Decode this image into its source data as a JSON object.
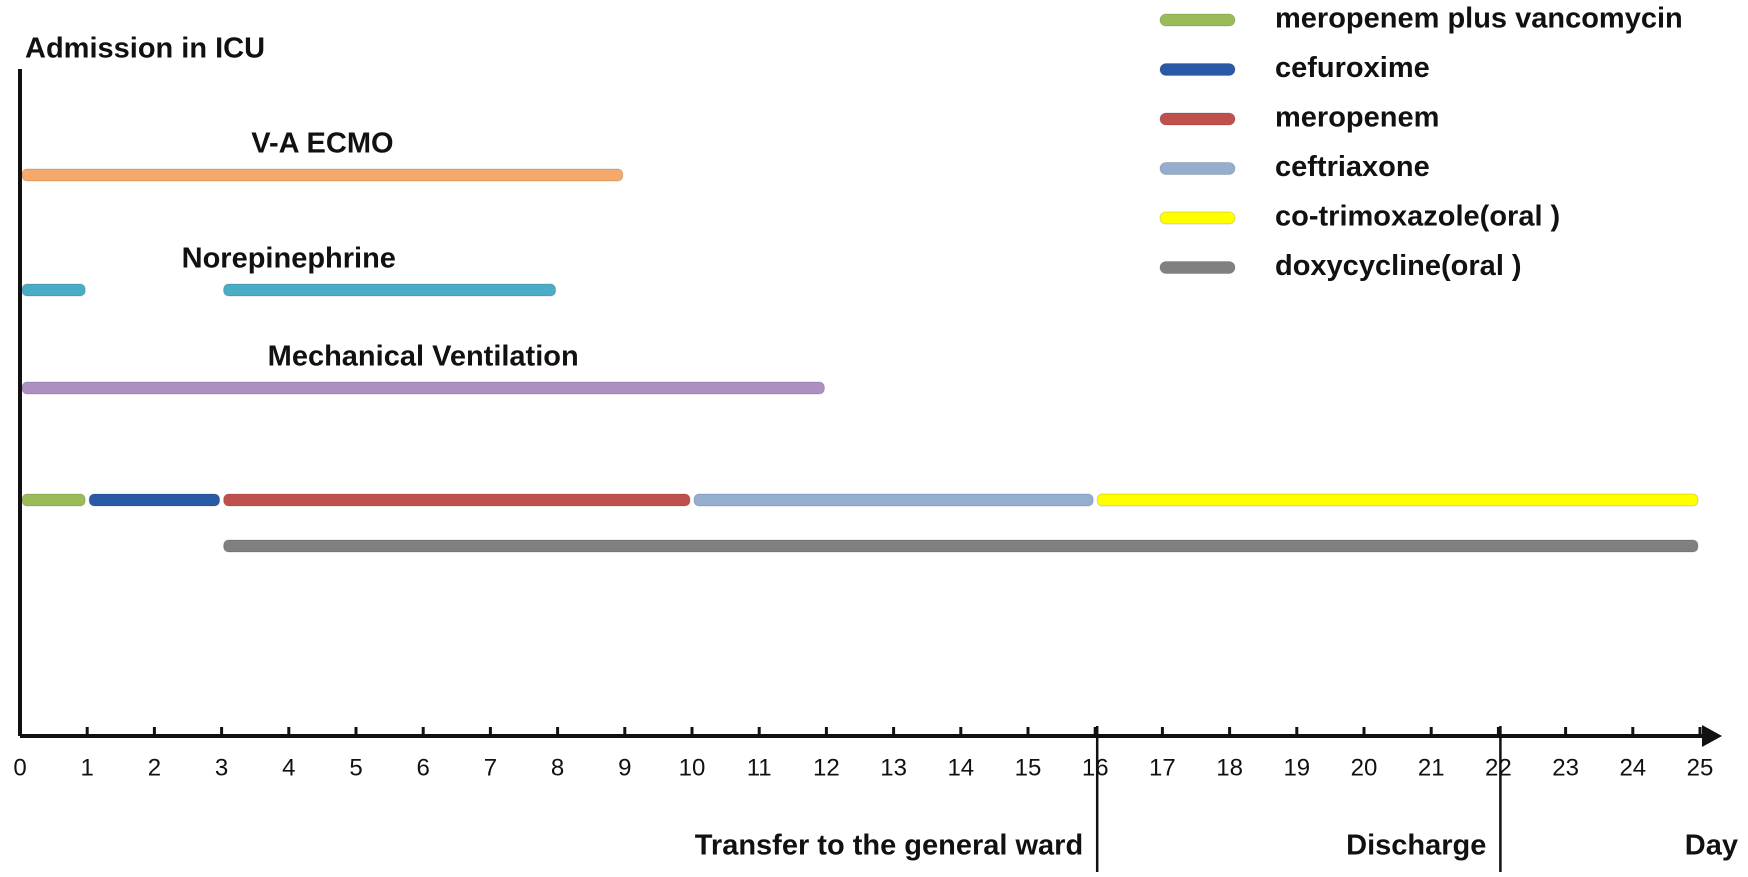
{
  "chart_data": {
    "type": "timeline",
    "xlabel": "Day",
    "xlim": [
      0,
      25
    ],
    "xticks": [
      0,
      1,
      2,
      3,
      4,
      5,
      6,
      7,
      8,
      9,
      10,
      11,
      12,
      13,
      14,
      15,
      16,
      17,
      18,
      19,
      20,
      21,
      22,
      23,
      24,
      25
    ],
    "events": [
      {
        "label": "Admission in ICU",
        "day": 0
      },
      {
        "label": "Transfer to the general ward",
        "day": 16
      },
      {
        "label": "Discharge",
        "day": 22
      }
    ],
    "rows": [
      {
        "label": "V-A ECMO",
        "color": "#f5a96b",
        "segments": [
          [
            0,
            9
          ]
        ]
      },
      {
        "label": "Norepinephrine",
        "color": "#4bacc6",
        "segments": [
          [
            0,
            1
          ],
          [
            3,
            8
          ]
        ]
      },
      {
        "label": "Mechanical Ventilation",
        "color": "#ad8fc1",
        "segments": [
          [
            0,
            12
          ]
        ]
      }
    ],
    "series": [
      {
        "name": "meropenem plus vancomycin",
        "color": "#9bbb59",
        "segments": [
          [
            0,
            1
          ]
        ]
      },
      {
        "name": "cefuroxime",
        "color": "#2a5aa5",
        "segments": [
          [
            1,
            3
          ]
        ]
      },
      {
        "name": "meropenem",
        "color": "#c0504d",
        "segments": [
          [
            3,
            10
          ]
        ]
      },
      {
        "name": "ceftriaxone",
        "color": "#95adcf",
        "segments": [
          [
            10,
            16
          ]
        ]
      },
      {
        "name": "co-trimoxazole(oral )",
        "color": "#ffff00",
        "segments": [
          [
            16,
            25
          ]
        ]
      },
      {
        "name": "doxycycline(oral )",
        "color": "#808080",
        "segments": [
          [
            3,
            25
          ]
        ]
      }
    ]
  }
}
